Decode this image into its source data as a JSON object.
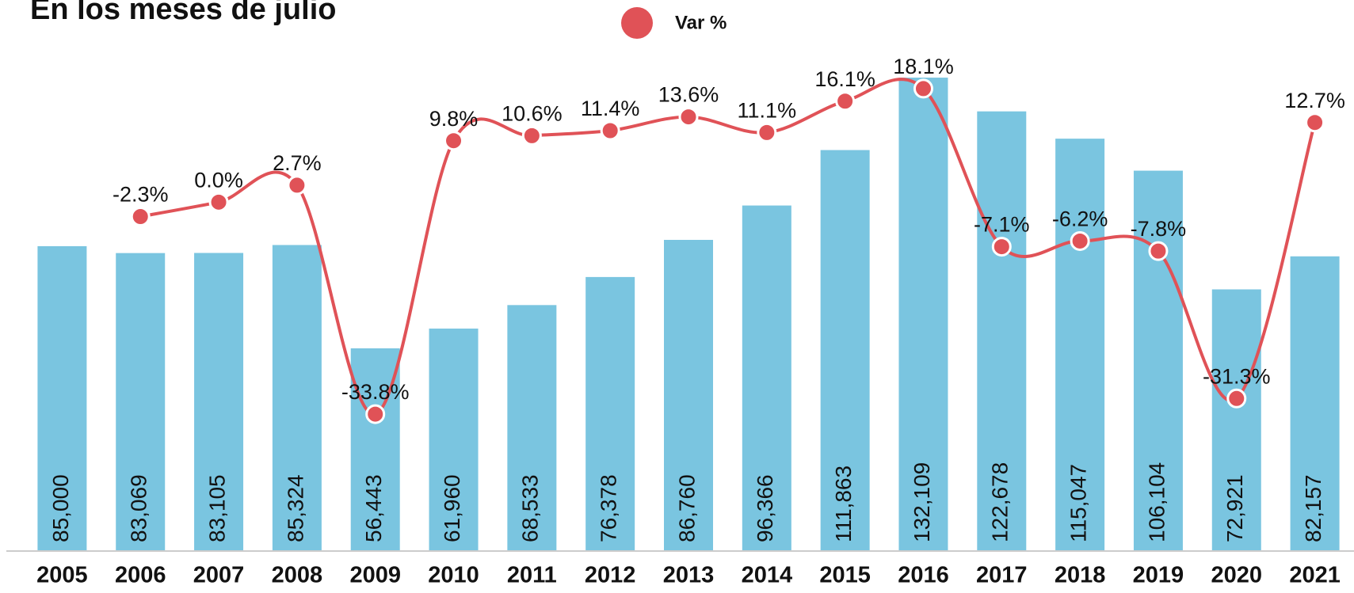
{
  "chart_data": {
    "type": "bar_line",
    "title": "En los meses de julio",
    "categories": [
      "2005",
      "2006",
      "2007",
      "2008",
      "2009",
      "2010",
      "2011",
      "2012",
      "2013",
      "2014",
      "2015",
      "2016",
      "2017",
      "2018",
      "2019",
      "2020",
      "2021"
    ],
    "series": [
      {
        "type": "bar",
        "color": "#7ac5e0",
        "values": [
          85000,
          83069,
          83105,
          85324,
          56443,
          61960,
          68533,
          76378,
          86760,
          96366,
          111863,
          132109,
          122678,
          115047,
          106104,
          72921,
          82157
        ],
        "value_labels": [
          "85,000",
          "83,069",
          "83,105",
          "85,324",
          "56,443",
          "61,960",
          "68,533",
          "76,378",
          "86,760",
          "96,366",
          "111,863",
          "132,109",
          "122,678",
          "115,047",
          "106,104",
          "72,921",
          "82,157"
        ]
      },
      {
        "type": "line",
        "name": "Var %",
        "color": "#e05257",
        "axis": "y2",
        "values": [
          null,
          -2.3,
          0.0,
          2.7,
          -33.8,
          9.8,
          10.6,
          11.4,
          13.6,
          11.1,
          16.1,
          18.1,
          -7.1,
          -6.2,
          -7.8,
          -31.3,
          12.7
        ],
        "value_labels": [
          null,
          "-2.3%",
          "0.0%",
          "2.7%",
          "-33.8%",
          "9.8%",
          "10.6%",
          "11.4%",
          "13.6%",
          "11.1%",
          "16.1%",
          "18.1%",
          "-7.1%",
          "-6.2%",
          "-7.8%",
          "-31.3%",
          "12.7%"
        ]
      }
    ],
    "ylim": [
      0,
      135000
    ],
    "y2lim": [
      -55.5,
      21.5
    ]
  }
}
